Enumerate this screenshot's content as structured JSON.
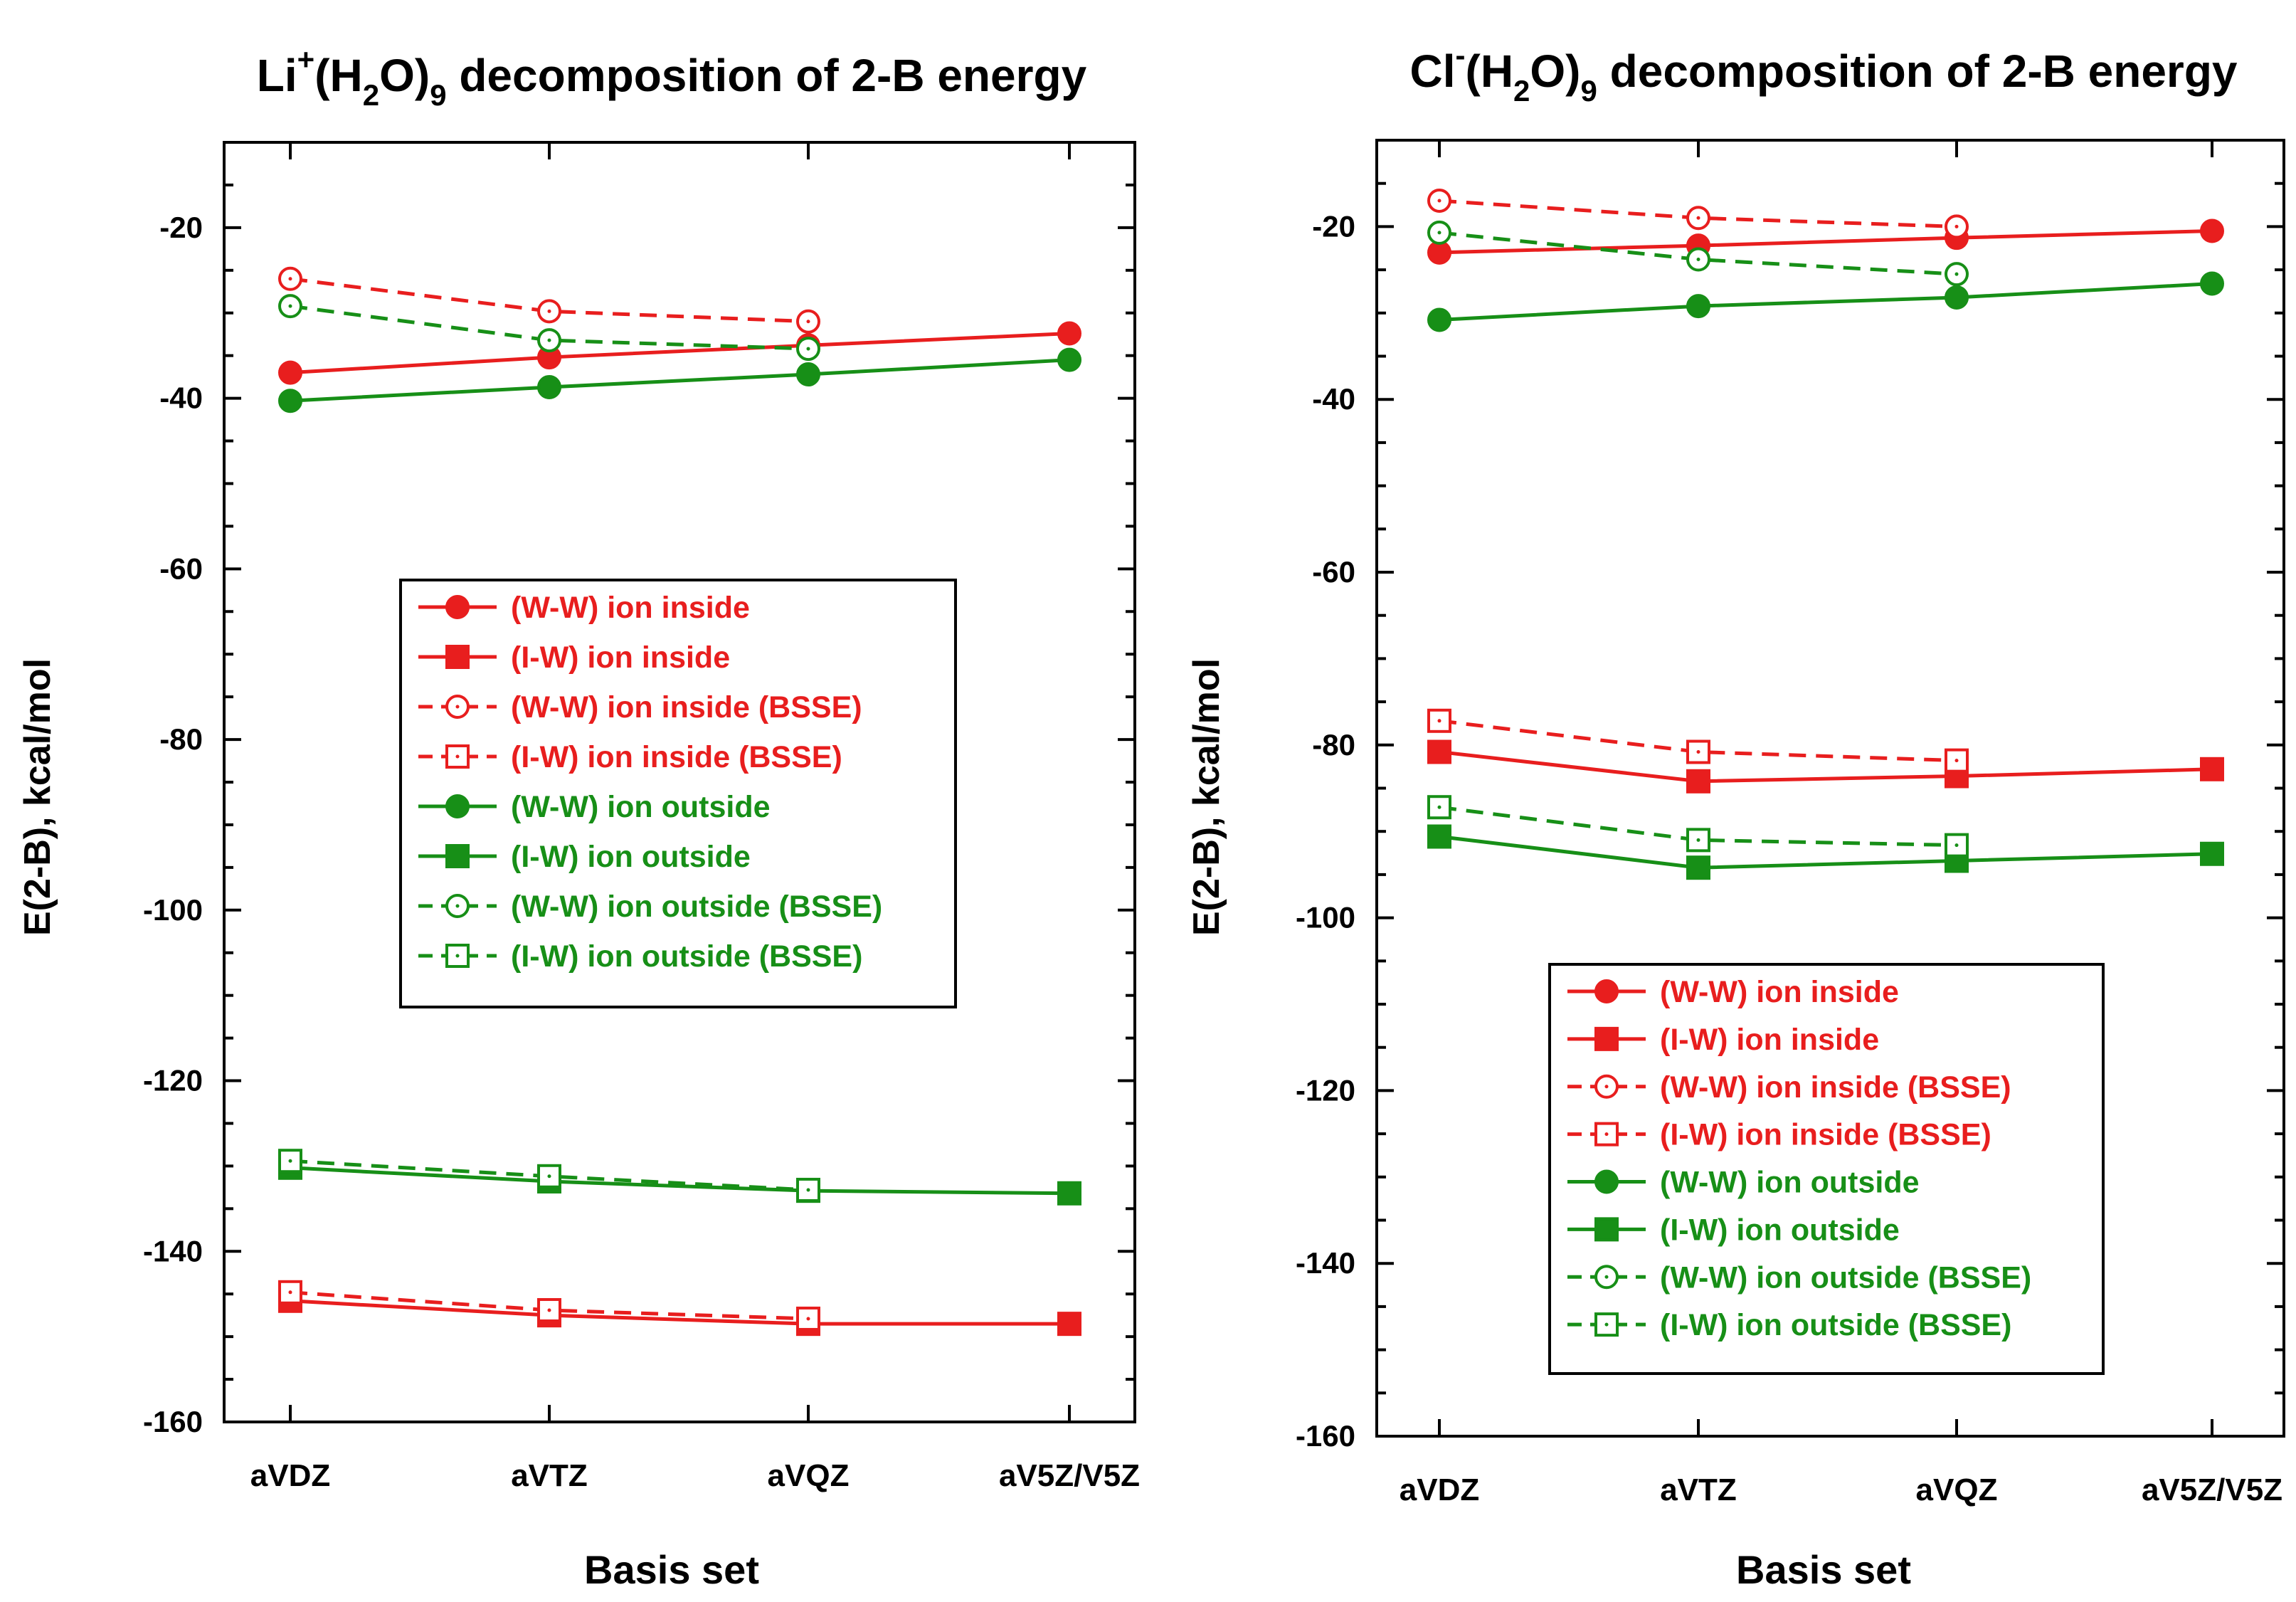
{
  "chart_data": [
    {
      "type": "line",
      "title": {
        "prefix": "Li",
        "sup": "+",
        "mid1": "(H",
        "sub1": "2",
        "mid2": "O)",
        "sub2": "9",
        "rest": " decomposition of 2-B energy"
      },
      "xlabel": "Basis set",
      "ylabel": "E(2-B), kcal/mol",
      "categories": [
        "aVDZ",
        "aVTZ",
        "aVQZ",
        "aV5Z/V5Z"
      ],
      "ylim": [
        -160,
        -10
      ],
      "yticks": [
        -160,
        -140,
        -120,
        -100,
        -80,
        -60,
        -40,
        -20
      ],
      "legend_position": "center",
      "series": [
        {
          "name": "(W-W) ion inside",
          "color": "#e81e1e",
          "marker": "circle",
          "filled": true,
          "dashed": false,
          "values": [
            -37.0,
            -35.2,
            -33.8,
            -32.4
          ]
        },
        {
          "name": "(I-W) ion inside",
          "color": "#e81e1e",
          "marker": "square",
          "filled": true,
          "dashed": false,
          "values": [
            -145.8,
            -147.5,
            -148.5,
            -148.5
          ]
        },
        {
          "name": "(W-W) ion inside (BSSE)",
          "color": "#e81e1e",
          "marker": "circle",
          "filled": false,
          "dashed": true,
          "values": [
            -26.0,
            -29.8,
            -31.0,
            null
          ]
        },
        {
          "name": "(I-W) ion inside (BSSE)",
          "color": "#e81e1e",
          "marker": "square",
          "filled": false,
          "dashed": true,
          "values": [
            -144.8,
            -146.9,
            -147.9,
            null
          ]
        },
        {
          "name": "(W-W) ion outside",
          "color": "#178f17",
          "marker": "circle",
          "filled": true,
          "dashed": false,
          "values": [
            -40.3,
            -38.7,
            -37.2,
            -35.5
          ]
        },
        {
          "name": "(I-W) ion outside",
          "color": "#178f17",
          "marker": "square",
          "filled": true,
          "dashed": false,
          "values": [
            -130.2,
            -131.8,
            -132.9,
            -133.2
          ]
        },
        {
          "name": "(W-W) ion outside (BSSE)",
          "color": "#178f17",
          "marker": "circle",
          "filled": false,
          "dashed": true,
          "values": [
            -29.2,
            -33.2,
            -34.2,
            null
          ]
        },
        {
          "name": "(I-W) ion outside (BSSE)",
          "color": "#178f17",
          "marker": "square",
          "filled": false,
          "dashed": true,
          "values": [
            -129.4,
            -131.2,
            -132.8,
            null
          ]
        }
      ]
    },
    {
      "type": "line",
      "title": {
        "prefix": "Cl",
        "sup": "-",
        "mid1": "(H",
        "sub1": "2",
        "mid2": "O)",
        "sub2": "9",
        "rest": " decomposition of 2-B energy"
      },
      "xlabel": "Basis set",
      "ylabel": "E(2-B), kcal/mol",
      "categories": [
        "aVDZ",
        "aVTZ",
        "aVQZ",
        "aV5Z/V5Z"
      ],
      "ylim": [
        -160,
        -10
      ],
      "yticks": [
        -160,
        -140,
        -120,
        -100,
        -80,
        -60,
        -40,
        -20
      ],
      "legend_position": "lower center",
      "series": [
        {
          "name": "(W-W) ion inside",
          "color": "#e81e1e",
          "marker": "circle",
          "filled": true,
          "dashed": false,
          "values": [
            -23.0,
            -22.2,
            -21.3,
            -20.5
          ]
        },
        {
          "name": "(I-W) ion inside",
          "color": "#e81e1e",
          "marker": "square",
          "filled": true,
          "dashed": false,
          "values": [
            -80.8,
            -84.2,
            -83.6,
            -82.8
          ]
        },
        {
          "name": "(W-W) ion inside (BSSE)",
          "color": "#e81e1e",
          "marker": "circle",
          "filled": false,
          "dashed": true,
          "values": [
            -17.0,
            -19.0,
            -20.0,
            null
          ]
        },
        {
          "name": "(I-W) ion inside (BSSE)",
          "color": "#e81e1e",
          "marker": "square",
          "filled": false,
          "dashed": true,
          "values": [
            -77.2,
            -80.8,
            -81.8,
            null
          ]
        },
        {
          "name": "(W-W) ion outside",
          "color": "#178f17",
          "marker": "circle",
          "filled": true,
          "dashed": false,
          "values": [
            -30.8,
            -29.2,
            -28.2,
            -26.6
          ]
        },
        {
          "name": "(I-W) ion outside",
          "color": "#178f17",
          "marker": "square",
          "filled": true,
          "dashed": false,
          "values": [
            -90.6,
            -94.2,
            -93.4,
            -92.6
          ]
        },
        {
          "name": "(W-W) ion outside (BSSE)",
          "color": "#178f17",
          "marker": "circle",
          "filled": false,
          "dashed": true,
          "values": [
            -20.7,
            -23.8,
            -25.5,
            null
          ]
        },
        {
          "name": "(I-W) ion outside (BSSE)",
          "color": "#178f17",
          "marker": "square",
          "filled": false,
          "dashed": true,
          "values": [
            -87.2,
            -91.0,
            -91.6,
            null
          ]
        }
      ]
    }
  ]
}
